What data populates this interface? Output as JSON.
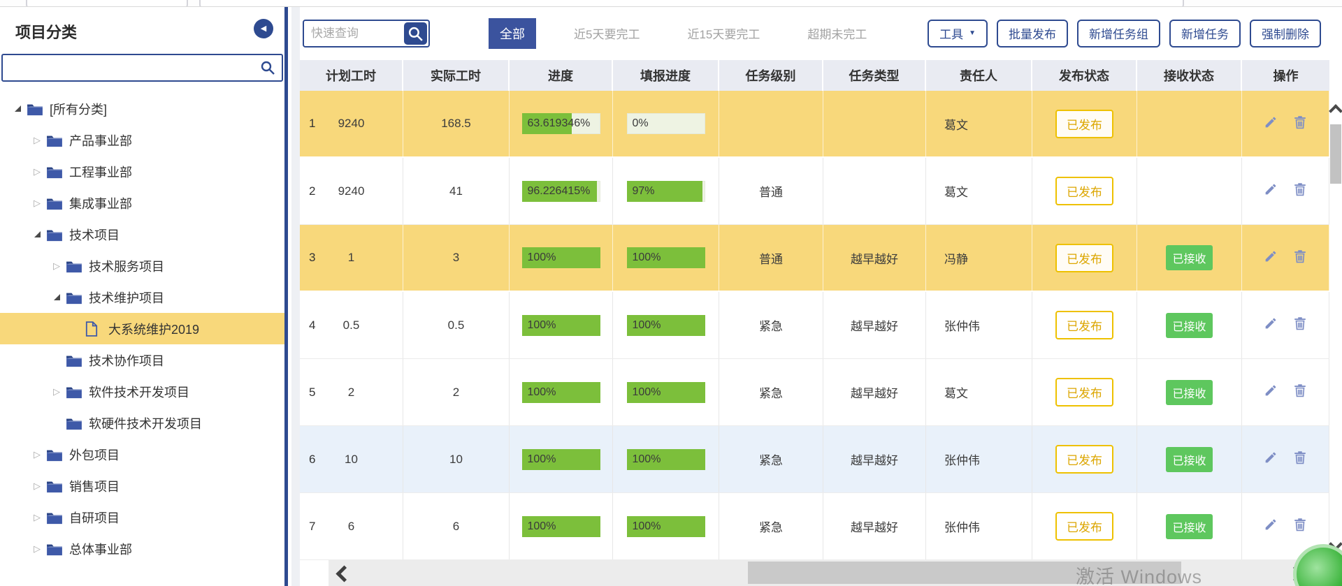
{
  "sidebar": {
    "title": "项目分类",
    "search_value": "",
    "tree": [
      {
        "label": "[所有分类]",
        "level": 0,
        "expander": "open",
        "icon": "folder",
        "selected": false
      },
      {
        "label": "产品事业部",
        "level": 1,
        "expander": "closed",
        "icon": "folder",
        "selected": false
      },
      {
        "label": "工程事业部",
        "level": 1,
        "expander": "closed",
        "icon": "folder",
        "selected": false
      },
      {
        "label": "集成事业部",
        "level": 1,
        "expander": "closed",
        "icon": "folder",
        "selected": false
      },
      {
        "label": "技术项目",
        "level": 1,
        "expander": "open",
        "icon": "folder",
        "selected": false
      },
      {
        "label": "技术服务项目",
        "level": 2,
        "expander": "closed",
        "icon": "folder",
        "selected": false
      },
      {
        "label": "技术维护项目",
        "level": 2,
        "expander": "open",
        "icon": "folder",
        "selected": false
      },
      {
        "label": "大系统维护2019",
        "level": 3,
        "expander": "none",
        "icon": "file",
        "selected": true
      },
      {
        "label": "技术协作项目",
        "level": 2,
        "expander": "none",
        "icon": "folder",
        "selected": false
      },
      {
        "label": "软件技术开发项目",
        "level": 2,
        "expander": "closed",
        "icon": "folder",
        "selected": false
      },
      {
        "label": "软硬件技术开发项目",
        "level": 2,
        "expander": "none",
        "icon": "folder",
        "selected": false
      },
      {
        "label": "外包项目",
        "level": 1,
        "expander": "closed",
        "icon": "folder",
        "selected": false
      },
      {
        "label": "销售项目",
        "level": 1,
        "expander": "closed",
        "icon": "folder",
        "selected": false
      },
      {
        "label": "自研项目",
        "level": 1,
        "expander": "closed",
        "icon": "folder",
        "selected": false
      },
      {
        "label": "总体事业部",
        "level": 1,
        "expander": "closed",
        "icon": "folder",
        "selected": false
      }
    ]
  },
  "toolbar": {
    "search_placeholder": "快速查询",
    "filters": [
      {
        "label": "全部",
        "active": true
      },
      {
        "label": "近5天要完工",
        "active": false
      },
      {
        "label": "近15天要完工",
        "active": false
      },
      {
        "label": "超期未完工",
        "active": false
      }
    ],
    "buttons": [
      {
        "label": "工具",
        "caret": true
      },
      {
        "label": "批量发布",
        "caret": false
      },
      {
        "label": "新增任务组",
        "caret": false
      },
      {
        "label": "新增任务",
        "caret": false
      },
      {
        "label": "强制删除",
        "caret": false
      }
    ]
  },
  "table": {
    "columns": [
      "计划工时",
      "实际工时",
      "进度",
      "填报进度",
      "任务级别",
      "任务类型",
      "责任人",
      "发布状态",
      "接收状态",
      "操作"
    ],
    "rows": [
      {
        "num": "1",
        "plan": "9240",
        "actual": "168.5",
        "progress_label": "63.619346%",
        "progress_pct": 63.6,
        "report_label": "0%",
        "report_pct": 0,
        "level": "",
        "type": "",
        "owner": "葛文",
        "publish": "已发布",
        "receive": "",
        "tone": "yellow"
      },
      {
        "num": "2",
        "plan": "9240",
        "actual": "41",
        "progress_label": "96.226415%",
        "progress_pct": 96.2,
        "report_label": "97%",
        "report_pct": 97,
        "level": "普通",
        "type": "",
        "owner": "葛文",
        "publish": "已发布",
        "receive": "",
        "tone": "white"
      },
      {
        "num": "3",
        "plan": "1",
        "actual": "3",
        "progress_label": "100%",
        "progress_pct": 100,
        "report_label": "100%",
        "report_pct": 100,
        "level": "普通",
        "type": "越早越好",
        "owner": "冯静",
        "publish": "已发布",
        "receive": "已接收",
        "tone": "yellow"
      },
      {
        "num": "4",
        "plan": "0.5",
        "actual": "0.5",
        "progress_label": "100%",
        "progress_pct": 100,
        "report_label": "100%",
        "report_pct": 100,
        "level": "紧急",
        "type": "越早越好",
        "owner": "张仲伟",
        "publish": "已发布",
        "receive": "已接收",
        "tone": "white"
      },
      {
        "num": "5",
        "plan": "2",
        "actual": "2",
        "progress_label": "100%",
        "progress_pct": 100,
        "report_label": "100%",
        "report_pct": 100,
        "level": "紧急",
        "type": "越早越好",
        "owner": "葛文",
        "publish": "已发布",
        "receive": "已接收",
        "tone": "white"
      },
      {
        "num": "6",
        "plan": "10",
        "actual": "10",
        "progress_label": "100%",
        "progress_pct": 100,
        "report_label": "100%",
        "report_pct": 100,
        "level": "紧急",
        "type": "越早越好",
        "owner": "张仲伟",
        "publish": "已发布",
        "receive": "已接收",
        "tone": "blue"
      },
      {
        "num": "7",
        "plan": "6",
        "actual": "6",
        "progress_label": "100%",
        "progress_pct": 100,
        "report_label": "100%",
        "report_pct": 100,
        "level": "紧急",
        "type": "越早越好",
        "owner": "张仲伟",
        "publish": "已发布",
        "receive": "已接收",
        "tone": "white"
      }
    ]
  },
  "watermark": "激活 Windows",
  "colors": {
    "navy": "#2e4a90",
    "activeTab": "#3b539e",
    "yellowRow": "#f8d87b",
    "blueRow": "#e9f1fa",
    "barGreen": "#7cbf3b",
    "barTrack": "#eef3e3",
    "goldText": "#dca600",
    "goldBorder": "#eec100",
    "greenBadge": "#5ec75e",
    "iconSlate": "#7e8ec5",
    "headerBg": "#e9ebf2"
  }
}
